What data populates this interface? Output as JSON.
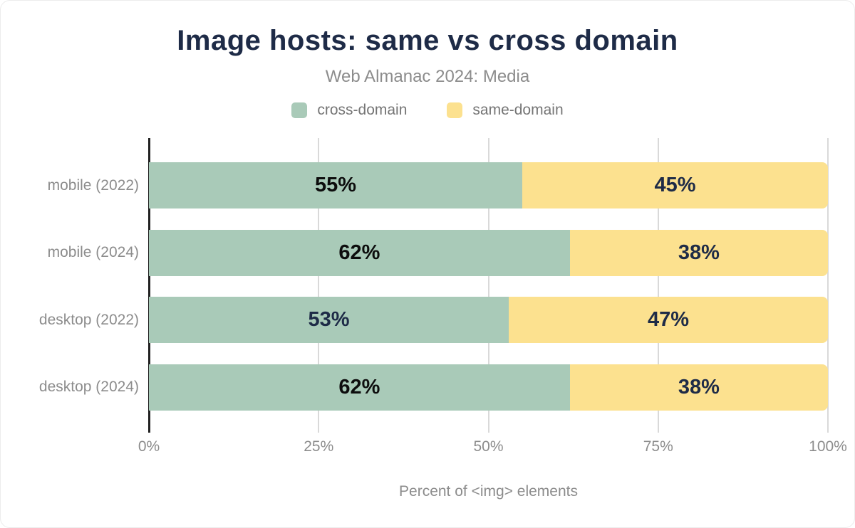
{
  "colors": {
    "cross_domain": "#a9cab8",
    "same_domain": "#fce18f",
    "title_navy": "#1e2b47",
    "label_black": "#0d0d0d",
    "muted_gray": "#8c8c8c",
    "legend_gray": "#757575",
    "gridline": "#d9d9d9",
    "axis": "#212121"
  },
  "chart_data": {
    "type": "bar",
    "orientation": "horizontal",
    "stacked": true,
    "title": "Image hosts: same vs cross domain",
    "subtitle": "Web Almanac 2024: Media",
    "xlabel": "Percent of <img> elements",
    "ylabel": "",
    "categories": [
      "mobile (2022)",
      "mobile (2024)",
      "desktop (2022)",
      "desktop (2024)"
    ],
    "series": [
      {
        "name": "cross-domain",
        "color": "#a9cab8",
        "values": [
          55,
          62,
          53,
          62
        ],
        "labels": [
          "55%",
          "62%",
          "53%",
          "62%"
        ],
        "label_colors": [
          "#0d0d0d",
          "#0d0d0d",
          "#1e2b47",
          "#0d0d0d"
        ]
      },
      {
        "name": "same-domain",
        "color": "#fce18f",
        "values": [
          45,
          38,
          47,
          38
        ],
        "labels": [
          "45%",
          "38%",
          "47%",
          "38%"
        ],
        "label_colors": [
          "#1e2b47",
          "#1e2b47",
          "#1e2b47",
          "#1e2b47"
        ]
      }
    ],
    "xlim": [
      0,
      100
    ],
    "x_ticks": [
      {
        "value": 0,
        "label": "0%"
      },
      {
        "value": 25,
        "label": "25%"
      },
      {
        "value": 50,
        "label": "50%"
      },
      {
        "value": 75,
        "label": "75%"
      },
      {
        "value": 100,
        "label": "100%"
      }
    ],
    "grid": "vertical",
    "legend_position": "top"
  }
}
